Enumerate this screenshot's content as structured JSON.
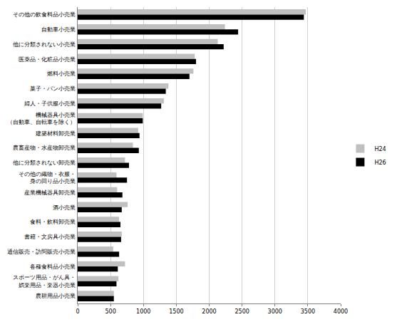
{
  "chart_data": {
    "type": "bar",
    "orientation": "horizontal",
    "categories": [
      "その他の飲食料品小売業",
      "自動車小売業",
      "他に分類されない小売業",
      "医薬品・化粧品小売業",
      "燃料小売業",
      "菓子・パン小売業",
      "婦人・子供服小売業",
      "機械器具小売業\n（自動車、自転車を除く）",
      "建築材料卸売業",
      "農畜産物・水産物卸売業",
      "他に分類されない卸売業",
      "その他の織物・衣服・\n身の回り品小売業",
      "産業機械器具卸売業",
      "酒小売業",
      "食料・飲料卸売業",
      "書籍・文房具小売業",
      "通信販売・訪問販売小売業",
      "各種食料品小売業",
      "スポーツ用品・がん具・\n娯楽用品・楽器小売業",
      "農耕用品小売業"
    ],
    "series": [
      {
        "name": "H24",
        "color": "#c0c0c0",
        "values": [
          3470,
          2240,
          2130,
          1780,
          1760,
          1380,
          1310,
          990,
          920,
          840,
          720,
          590,
          600,
          760,
          630,
          670,
          540,
          720,
          620,
          550
        ]
      },
      {
        "name": "H26",
        "color": "#000000",
        "values": [
          3440,
          2440,
          2220,
          1800,
          1700,
          1340,
          1270,
          990,
          940,
          930,
          780,
          750,
          680,
          670,
          650,
          660,
          630,
          610,
          590,
          550
        ]
      }
    ],
    "xlim": [
      0,
      4000
    ],
    "xticks": [
      0,
      500,
      1000,
      1500,
      2000,
      2500,
      3000,
      3500,
      4000
    ],
    "grid": true,
    "legend": "right"
  }
}
